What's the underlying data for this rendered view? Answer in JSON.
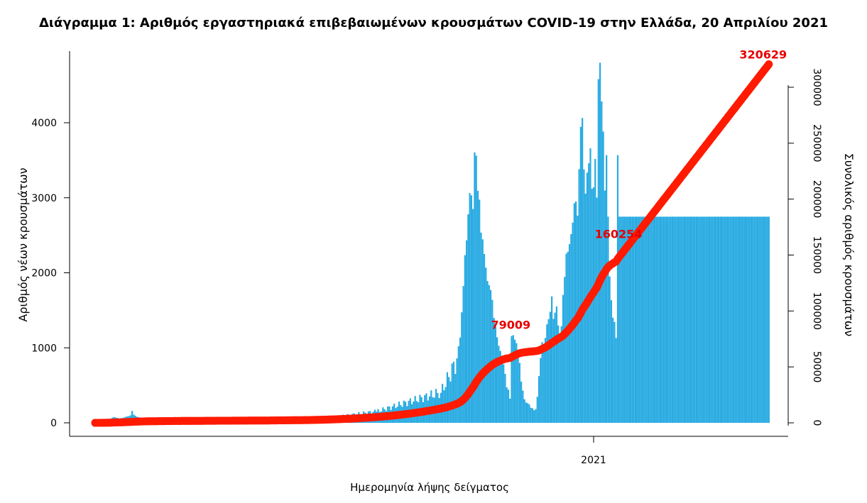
{
  "chart_data": {
    "type": "bar",
    "title": "Διάγραμμα 1: Αριθμός εργαστηριακά επιβεβαιωμένων κρουσμάτων COVID-19 στην Ελλάδα, 20 Απριλίου 2021",
    "xlabel": "Ημερομηνία λήψης δείγματος",
    "ylabel": "Αριθμός νέων κρουσμάτων",
    "y2label": "Συνολικός αριθμός κρουσμάτων",
    "x_tick_labels": [
      "2021"
    ],
    "ylim": [
      0,
      4900
    ],
    "y_ticks": [
      0,
      1000,
      2000,
      3000,
      4000
    ],
    "y2lim": [
      0,
      320629
    ],
    "y2_ticks": [
      0,
      50000,
      100000,
      150000,
      200000,
      250000,
      300000
    ],
    "grid": false,
    "bar_color": "#29abe2",
    "line_color": "#ff1a00",
    "series": [
      {
        "name": "new_cases",
        "kind": "bar",
        "start_date": "2020-02-26",
        "end_date": "2021-04-20",
        "segments": [
          {
            "days": 40,
            "values": [
              0,
              4,
              6,
              10,
              14,
              20,
              31,
              45,
              48,
              52,
              60,
              71,
              77,
              70,
              65,
              55,
              60,
              66,
              70,
              80,
              85,
              90,
              100,
              159,
              110,
              95,
              80,
              75,
              70,
              65,
              60,
              55,
              50,
              45,
              40,
              35,
              30,
              28,
              25,
              22
            ]
          },
          {
            "days": 45,
            "from": 20,
            "to": 8
          },
          {
            "days": 45,
            "from": 8,
            "to": 25
          },
          {
            "days": 45,
            "from": 25,
            "to": 150
          },
          {
            "days": 40,
            "from": 150,
            "to": 400
          },
          {
            "days": 12,
            "from": 400,
            "to": 880
          },
          {
            "days": 12,
            "values": [
              1137,
              1473,
              1824,
              2235,
              2433,
              2780,
              3062,
              3032,
              2850,
              3605,
              3562,
              3093
            ]
          },
          {
            "days": 12,
            "values": [
              2975,
              2535,
              2446,
              2250,
              2069,
              1890,
              1835,
              1770,
              1639,
              1398,
              1282,
              1140
            ]
          },
          {
            "days": 12,
            "values": [
              1026,
              958,
              835,
              779,
              653,
              472,
              442,
              322,
              1157,
              1168,
              1109,
              1062
            ]
          },
          {
            "days": 10,
            "values": [
              910,
              799,
              550,
              429,
              314,
              270,
              262,
              244,
              201,
              195
            ]
          },
          {
            "days": 8,
            "values": [
              168,
              184,
              347,
              623,
              864,
              1076,
              1017,
              1132
            ]
          },
          {
            "days": 10,
            "values": [
              1313,
              1381,
              1480,
              1685,
              1386,
              1469,
              1552,
              1298,
              1147,
              1288
            ]
          },
          {
            "days": 10,
            "values": [
              1705,
              1945,
              2255,
              2281,
              2382,
              2515,
              2669,
              2927,
              2952,
              2762
            ]
          },
          {
            "days": 12,
            "values": [
              3381,
              3946,
              4063,
              3378,
              3055,
              3334,
              3459,
              3659,
              3120,
              3138,
              3517,
              3002
            ]
          },
          {
            "days": 14,
            "values": [
              4581,
              4800,
              4284,
              3883,
              3096,
              3568,
              2748,
              1950,
              1634,
              1401,
              1344,
              1131,
              3568,
              2748
            ]
          }
        ]
      },
      {
        "name": "cumulative",
        "kind": "line",
        "axis": "right",
        "annotations": [
          {
            "date": "2020-11-14",
            "label": "79009",
            "value": 79009
          },
          {
            "date": "2021-01-20",
            "label": "160254",
            "value": 160254
          },
          {
            "date": "2021-04-20",
            "label": "320629",
            "value": 320629
          }
        ]
      }
    ]
  }
}
